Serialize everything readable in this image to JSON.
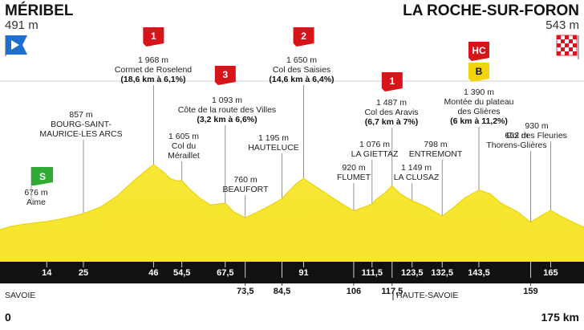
{
  "header": {
    "start_city": "MÉRIBEL",
    "start_alt": "491 m",
    "finish_city": "LA ROCHE-SUR-FORON",
    "finish_alt": "543 m"
  },
  "regions": [
    "SAVOIE",
    "HAUTE-SAVOIE"
  ],
  "axis": {
    "start": "0",
    "end": "175 km"
  },
  "colors": {
    "profile": "#f7e633",
    "strip": "#111111",
    "climb": "#d7141a",
    "sprint": "#2eab32",
    "start_flag": "#1f6fd0"
  },
  "chart_data": {
    "type": "area",
    "xlim": [
      0,
      175
    ],
    "ylim": [
      300,
      2100
    ],
    "profile": [
      [
        0,
        491
      ],
      [
        3,
        560
      ],
      [
        6,
        600
      ],
      [
        10,
        640
      ],
      [
        14,
        676
      ],
      [
        18,
        730
      ],
      [
        22,
        800
      ],
      [
        25,
        857
      ],
      [
        30,
        1000
      ],
      [
        35,
        1250
      ],
      [
        40,
        1600
      ],
      [
        44,
        1850
      ],
      [
        46,
        1968
      ],
      [
        49,
        1800
      ],
      [
        51,
        1650
      ],
      [
        53,
        1600
      ],
      [
        54.5,
        1605
      ],
      [
        57,
        1400
      ],
      [
        60,
        1200
      ],
      [
        63,
        1050
      ],
      [
        67.5,
        1093
      ],
      [
        70,
        900
      ],
      [
        73.5,
        760
      ],
      [
        76,
        850
      ],
      [
        80,
        1000
      ],
      [
        84.5,
        1195
      ],
      [
        87,
        1400
      ],
      [
        89,
        1550
      ],
      [
        91,
        1650
      ],
      [
        95,
        1450
      ],
      [
        99,
        1250
      ],
      [
        103,
        1050
      ],
      [
        106,
        920
      ],
      [
        109,
        1000
      ],
      [
        111.5,
        1076
      ],
      [
        113,
        1200
      ],
      [
        115,
        1300
      ],
      [
        117.5,
        1487
      ],
      [
        120,
        1300
      ],
      [
        123.5,
        1149
      ],
      [
        128,
        1000
      ],
      [
        132.5,
        798
      ],
      [
        136,
        1000
      ],
      [
        139,
        1200
      ],
      [
        143.5,
        1390
      ],
      [
        147,
        1300
      ],
      [
        150,
        1100
      ],
      [
        155,
        900
      ],
      [
        159,
        662
      ],
      [
        162,
        800
      ],
      [
        165,
        930
      ],
      [
        168,
        800
      ],
      [
        172,
        650
      ],
      [
        175,
        543
      ]
    ],
    "km_markers": [
      {
        "km": 14,
        "label": "14",
        "row": 1
      },
      {
        "km": 25,
        "label": "25",
        "row": 1
      },
      {
        "km": 46,
        "label": "46",
        "row": 1
      },
      {
        "km": 54.5,
        "label": "54,5",
        "row": 1
      },
      {
        "km": 67.5,
        "label": "67,5",
        "row": 1
      },
      {
        "km": 73.5,
        "label": "73,5",
        "row": 2
      },
      {
        "km": 84.5,
        "label": "84,5",
        "row": 2
      },
      {
        "km": 91,
        "label": "91",
        "row": 1
      },
      {
        "km": 106,
        "label": "106",
        "row": 2
      },
      {
        "km": 111.5,
        "label": "111,5",
        "row": 1
      },
      {
        "km": 117.5,
        "label": "117,5",
        "row": 2
      },
      {
        "km": 123.5,
        "label": "123,5",
        "row": 1
      },
      {
        "km": 132.5,
        "label": "132,5",
        "row": 1
      },
      {
        "km": 143.5,
        "label": "143,5",
        "row": 1
      },
      {
        "km": 159,
        "label": "159",
        "row": 2
      },
      {
        "km": 165,
        "label": "165",
        "row": 1
      }
    ],
    "points": [
      {
        "km": 14,
        "lines": [
          "676 m",
          "Aime"
        ],
        "bold": []
      },
      {
        "km": 25,
        "lines": [
          "857 m",
          "BOURG-SAINT-",
          "MAURICE-LES ARCS"
        ],
        "bold": []
      },
      {
        "km": 46,
        "lines": [
          "1 968 m",
          "Cormet de Roselend",
          "(18,6 km à 6,1%)"
        ],
        "bold": [
          2
        ],
        "badge": "1",
        "badge_type": "climb"
      },
      {
        "km": 54.5,
        "lines": [
          "1 605 m",
          "Col du",
          "Méraillet"
        ],
        "bold": []
      },
      {
        "km": 67.5,
        "lines": [
          "1 093 m",
          "Côte de la route des Villes",
          "(3,2 km à 6,6%)"
        ],
        "bold": [
          2
        ],
        "badge": "3",
        "badge_type": "climb"
      },
      {
        "km": 73.5,
        "lines": [
          "760 m",
          "BEAUFORT"
        ],
        "bold": []
      },
      {
        "km": 84.5,
        "lines": [
          "1 195 m",
          "HAUTELUCE"
        ],
        "bold": []
      },
      {
        "km": 91,
        "lines": [
          "1 650 m",
          "Col des Saisies",
          "(14,6 km à 6,4%)"
        ],
        "bold": [
          2
        ],
        "badge": "2",
        "badge_type": "climb"
      },
      {
        "km": 106,
        "lines": [
          "920 m",
          "FLUMET"
        ],
        "bold": []
      },
      {
        "km": 111.5,
        "lines": [
          "1 076 m",
          "LA GIETTAZ"
        ],
        "bold": []
      },
      {
        "km": 117.5,
        "lines": [
          "1 487 m",
          "Col des Aravis",
          "(6,7 km à 7%)"
        ],
        "bold": [
          2
        ],
        "badge": "1",
        "badge_type": "climb"
      },
      {
        "km": 123.5,
        "lines": [
          "1 149 m",
          "LA CLUSAZ"
        ],
        "bold": []
      },
      {
        "km": 132.5,
        "lines": [
          "798 m",
          "ENTREMONT"
        ],
        "bold": []
      },
      {
        "km": 143.5,
        "lines": [
          "1 390 m",
          "Montée du plateau",
          "des Glières",
          "(6 km à 11,2%)"
        ],
        "bold": [
          3
        ],
        "badge": "HC",
        "badge_type": "climb",
        "badge2": "B"
      },
      {
        "km": 159,
        "lines": [
          "662 m",
          "Thorens-Glières"
        ],
        "bold": []
      },
      {
        "km": 165,
        "lines": [
          "930 m",
          "Col des Fleuries"
        ],
        "bold": []
      }
    ],
    "sprint": {
      "km": 14,
      "label": "S"
    }
  }
}
